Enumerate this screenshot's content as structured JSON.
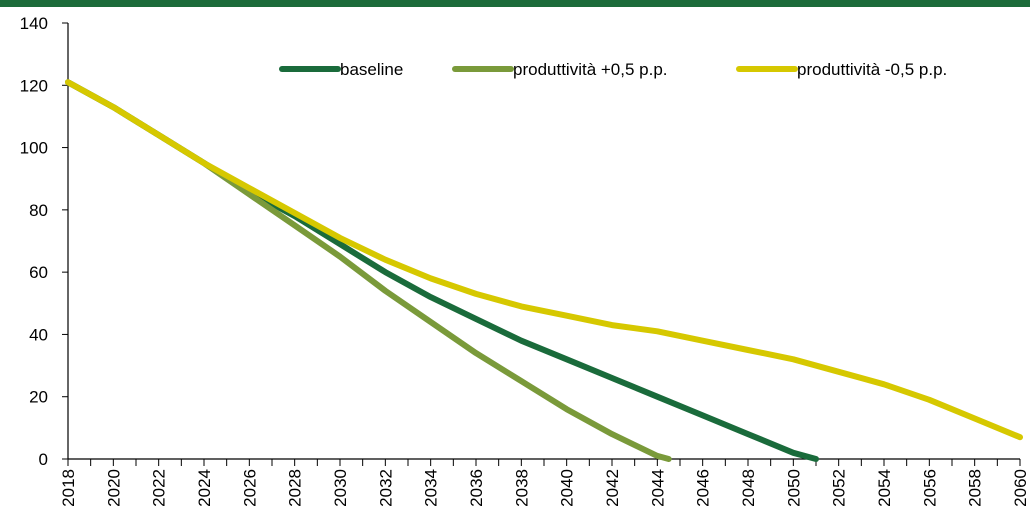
{
  "theme": {
    "top_bar_color": "#1d6b3a",
    "axis_color": "#000000"
  },
  "chart_data": {
    "type": "line",
    "title": "",
    "xlabel": "",
    "ylabel": "",
    "ylim": [
      0,
      140
    ],
    "yticks": [
      0,
      20,
      40,
      60,
      80,
      100,
      120,
      140
    ],
    "xlim": [
      2018,
      2060
    ],
    "xticks": [
      "2018",
      "2020",
      "2022",
      "2024",
      "2026",
      "2028",
      "2030",
      "2032",
      "2034",
      "2036",
      "2038",
      "2040",
      "2042",
      "2044",
      "2046",
      "2048",
      "2050",
      "2052",
      "2054",
      "2056",
      "2058",
      "2060"
    ],
    "grid": false,
    "legend_position": "top-right",
    "series": [
      {
        "name": "baseline",
        "color": "#1a6b3b",
        "points": [
          [
            2018,
            121
          ],
          [
            2020,
            113
          ],
          [
            2022,
            104
          ],
          [
            2024,
            95
          ],
          [
            2026,
            86
          ],
          [
            2028,
            78
          ],
          [
            2030,
            69
          ],
          [
            2032,
            60
          ],
          [
            2034,
            52
          ],
          [
            2036,
            45
          ],
          [
            2038,
            38
          ],
          [
            2040,
            32
          ],
          [
            2042,
            26
          ],
          [
            2044,
            20
          ],
          [
            2046,
            14
          ],
          [
            2048,
            8
          ],
          [
            2050,
            2
          ],
          [
            2051,
            0
          ]
        ]
      },
      {
        "name": "produttività +0,5 p.p.",
        "color": "#7a9a3a",
        "points": [
          [
            2018,
            121
          ],
          [
            2020,
            113
          ],
          [
            2022,
            104
          ],
          [
            2024,
            95
          ],
          [
            2026,
            85
          ],
          [
            2028,
            75
          ],
          [
            2030,
            65
          ],
          [
            2032,
            54
          ],
          [
            2034,
            44
          ],
          [
            2036,
            34
          ],
          [
            2038,
            25
          ],
          [
            2040,
            16
          ],
          [
            2042,
            8
          ],
          [
            2044,
            1
          ],
          [
            2044.5,
            0
          ]
        ]
      },
      {
        "name": "produttività -0,5 p.p.",
        "color": "#d6c800",
        "points": [
          [
            2018,
            121
          ],
          [
            2020,
            113
          ],
          [
            2022,
            104
          ],
          [
            2024,
            95
          ],
          [
            2026,
            87
          ],
          [
            2028,
            79
          ],
          [
            2030,
            71
          ],
          [
            2032,
            64
          ],
          [
            2034,
            58
          ],
          [
            2036,
            53
          ],
          [
            2038,
            49
          ],
          [
            2040,
            46
          ],
          [
            2042,
            43
          ],
          [
            2044,
            41
          ],
          [
            2046,
            38
          ],
          [
            2048,
            35
          ],
          [
            2050,
            32
          ],
          [
            2052,
            28
          ],
          [
            2054,
            24
          ],
          [
            2056,
            19
          ],
          [
            2058,
            13
          ],
          [
            2060,
            7
          ]
        ]
      }
    ]
  }
}
